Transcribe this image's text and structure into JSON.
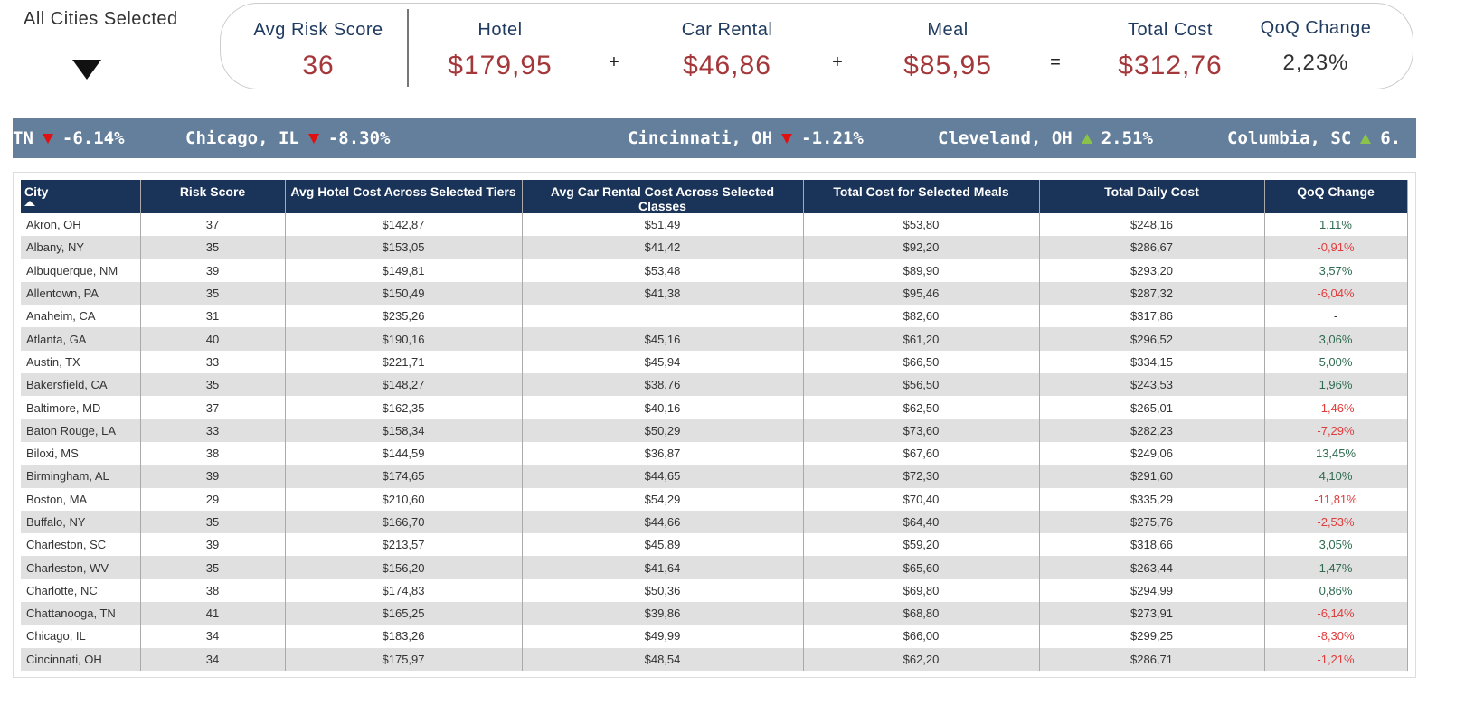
{
  "filter": {
    "label": "All Cities Selected"
  },
  "kpis": [
    {
      "label": "Avg Risk Score",
      "value": "36"
    },
    {
      "label": "Hotel",
      "value": "$179,95"
    },
    {
      "label": "Car Rental",
      "value": "$46,86"
    },
    {
      "label": "Meal",
      "value": "$85,95"
    },
    {
      "label": "Total Cost",
      "value": "$312,76"
    },
    {
      "label": "QoQ Change",
      "value": "2,23%"
    }
  ],
  "operators": [
    "+",
    "+",
    "="
  ],
  "ticker": [
    {
      "city": "TN",
      "direction": "down",
      "change": "-6.14%"
    },
    {
      "city": "Chicago, IL",
      "direction": "down",
      "change": "-8.30%"
    },
    {
      "city": "Cincinnati, OH",
      "direction": "down",
      "change": "-1.21%"
    },
    {
      "city": "Cleveland, OH",
      "direction": "up",
      "change": "2.51%"
    },
    {
      "city": "Columbia, SC",
      "direction": "up",
      "change": "6."
    }
  ],
  "table": {
    "columns": [
      "City",
      "Risk Score",
      "Avg Hotel Cost Across Selected Tiers",
      "Avg Car Rental Cost Across Selected Classes",
      "Total Cost for Selected Meals",
      "Total Daily Cost",
      "QoQ Change"
    ],
    "rows": [
      [
        "Akron, OH",
        "37",
        "$142,87",
        "$51,49",
        "$53,80",
        "$248,16",
        "1,11%"
      ],
      [
        "Albany, NY",
        "35",
        "$153,05",
        "$41,42",
        "$92,20",
        "$286,67",
        "-0,91%"
      ],
      [
        "Albuquerque, NM",
        "39",
        "$149,81",
        "$53,48",
        "$89,90",
        "$293,20",
        "3,57%"
      ],
      [
        "Allentown, PA",
        "35",
        "$150,49",
        "$41,38",
        "$95,46",
        "$287,32",
        "-6,04%"
      ],
      [
        "Anaheim, CA",
        "31",
        "$235,26",
        null,
        "$82,60",
        "$317,86",
        "-"
      ],
      [
        "Atlanta, GA",
        "40",
        "$190,16",
        "$45,16",
        "$61,20",
        "$296,52",
        "3,06%"
      ],
      [
        "Austin, TX",
        "33",
        "$221,71",
        "$45,94",
        "$66,50",
        "$334,15",
        "5,00%"
      ],
      [
        "Bakersfield, CA",
        "35",
        "$148,27",
        "$38,76",
        "$56,50",
        "$243,53",
        "1,96%"
      ],
      [
        "Baltimore, MD",
        "37",
        "$162,35",
        "$40,16",
        "$62,50",
        "$265,01",
        "-1,46%"
      ],
      [
        "Baton Rouge, LA",
        "33",
        "$158,34",
        "$50,29",
        "$73,60",
        "$282,23",
        "-7,29%"
      ],
      [
        "Biloxi, MS",
        "38",
        "$144,59",
        "$36,87",
        "$67,60",
        "$249,06",
        "13,45%"
      ],
      [
        "Birmingham, AL",
        "39",
        "$174,65",
        "$44,65",
        "$72,30",
        "$291,60",
        "4,10%"
      ],
      [
        "Boston, MA",
        "29",
        "$210,60",
        "$54,29",
        "$70,40",
        "$335,29",
        "-11,81%"
      ],
      [
        "Buffalo, NY",
        "35",
        "$166,70",
        "$44,66",
        "$64,40",
        "$275,76",
        "-2,53%"
      ],
      [
        "Charleston, SC",
        "39",
        "$213,57",
        "$45,89",
        "$59,20",
        "$318,66",
        "3,05%"
      ],
      [
        "Charleston, WV",
        "35",
        "$156,20",
        "$41,64",
        "$65,60",
        "$263,44",
        "1,47%"
      ],
      [
        "Charlotte, NC",
        "38",
        "$174,83",
        "$50,36",
        "$69,80",
        "$294,99",
        "0,86%"
      ],
      [
        "Chattanooga, TN",
        "41",
        "$165,25",
        "$39,86",
        "$68,80",
        "$273,91",
        "-6,14%"
      ],
      [
        "Chicago, IL",
        "34",
        "$183,26",
        "$49,99",
        "$66,00",
        "$299,25",
        "-8,30%"
      ],
      [
        "Cincinnati, OH",
        "34",
        "$175,97",
        "$48,54",
        "$62,20",
        "$286,71",
        "-1,21%"
      ]
    ]
  }
}
